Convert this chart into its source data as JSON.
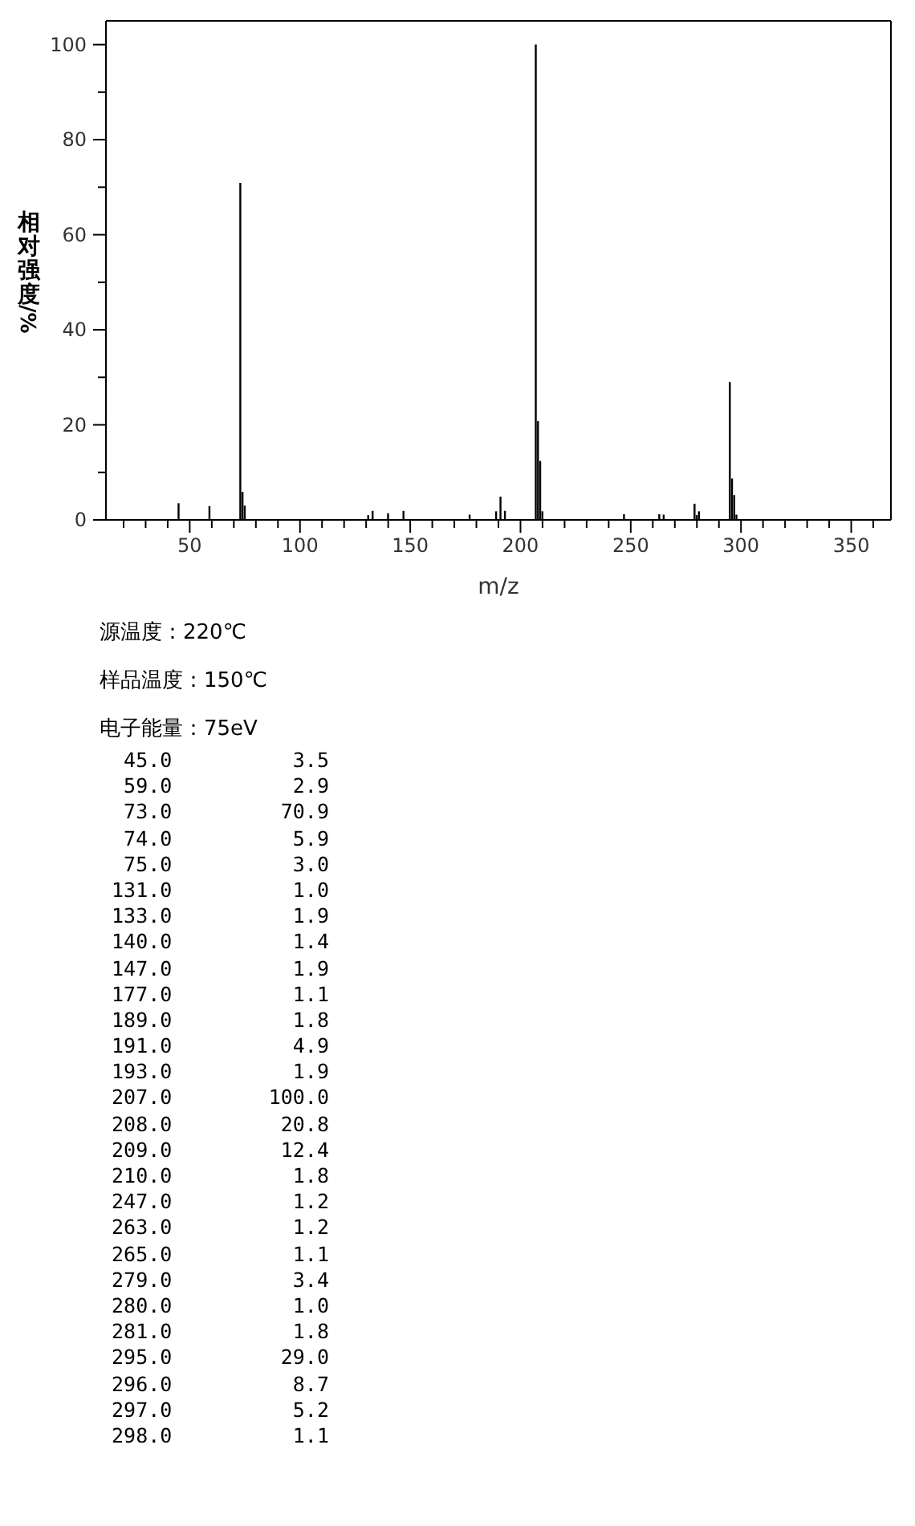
{
  "chart_data": {
    "type": "bar",
    "xlabel": "m/z",
    "ylabel": "相对强度/%",
    "x": [
      45,
      59,
      73,
      74,
      75,
      131,
      133,
      140,
      147,
      177,
      189,
      191,
      193,
      207,
      208,
      209,
      210,
      247,
      263,
      265,
      279,
      280,
      281,
      295,
      296,
      297,
      298
    ],
    "series": [
      {
        "color": "#000000",
        "values": [
          3.5,
          2.9,
          70.9,
          5.9,
          3.0,
          1.0,
          1.9,
          1.4,
          1.9,
          1.1,
          1.8,
          4.9,
          1.9,
          100.0,
          20.8,
          12.4,
          1.8,
          1.2,
          1.2,
          1.1,
          3.4,
          1.0,
          1.8,
          29.0,
          8.7,
          5.2,
          1.1
        ]
      }
    ],
    "xlim": [
      12,
      368
    ],
    "xticks": [
      {
        "value": 20,
        "label": null
      },
      {
        "value": 30,
        "label": null
      },
      {
        "value": 40,
        "label": null
      },
      50,
      {
        "value": 60,
        "label": null
      },
      {
        "value": 70,
        "label": null
      },
      {
        "value": 80,
        "label": null
      },
      {
        "value": 90,
        "label": null
      },
      100,
      {
        "value": 110,
        "label": null
      },
      {
        "value": 120,
        "label": null
      },
      {
        "value": 130,
        "label": null
      },
      {
        "value": 140,
        "label": null
      },
      150,
      {
        "value": 160,
        "label": null
      },
      {
        "value": 170,
        "label": null
      },
      {
        "value": 180,
        "label": null
      },
      {
        "value": 190,
        "label": null
      },
      200,
      {
        "value": 210,
        "label": null
      },
      {
        "value": 220,
        "label": null
      },
      {
        "value": 230,
        "label": null
      },
      {
        "value": 240,
        "label": null
      },
      250,
      {
        "value": 260,
        "label": null
      },
      {
        "value": 270,
        "label": null
      },
      {
        "value": 280,
        "label": null
      },
      {
        "value": 290,
        "label": null
      },
      300,
      {
        "value": 310,
        "label": null
      },
      {
        "value": 320,
        "label": null
      },
      {
        "value": 330,
        "label": null
      },
      {
        "value": 340,
        "label": null
      },
      350,
      {
        "value": 360,
        "label": null
      }
    ],
    "ylim": [
      0,
      105
    ],
    "yticks": [
      0,
      {
        "value": 10,
        "label": null
      },
      20,
      {
        "value": 30,
        "label": null
      },
      40,
      {
        "value": 50,
        "label": null
      },
      60,
      {
        "value": 70,
        "label": null
      },
      80,
      {
        "value": 90,
        "label": null
      },
      100
    ],
    "annotations": [
      "源温度：220℃",
      "样品温度：150℃",
      "电子能量：75eV",
      "  45.0          3.5",
      "  59.0          2.9",
      "  73.0         70.9",
      "  74.0          5.9",
      "  75.0          3.0",
      " 131.0          1.0",
      " 133.0          1.9",
      " 140.0          1.4",
      " 147.0          1.9",
      " 177.0          1.1",
      " 189.0          1.8",
      " 191.0          4.9",
      " 193.0          1.9",
      " 207.0        100.0",
      " 208.0         20.8",
      " 209.0         12.4",
      " 210.0          1.8",
      " 247.0          1.2",
      " 263.0          1.2",
      " 265.0          1.1",
      " 279.0          3.4",
      " 280.0          1.0",
      " 281.0          1.8",
      " 295.0         29.0",
      " 296.0          8.7",
      " 297.0          5.2",
      " 298.0          1.1"
    ]
  }
}
